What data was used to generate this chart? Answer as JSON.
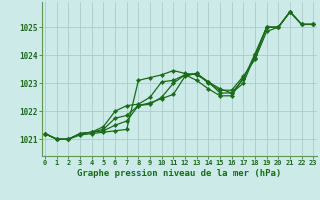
{
  "title": "Graphe pression niveau de la mer (hPa)",
  "background_color": "#cceae7",
  "grid_color": "#aacccc",
  "line_color": "#1a6b1a",
  "marker_color": "#1a6b1a",
  "x_labels": [
    "0",
    "1",
    "2",
    "3",
    "4",
    "5",
    "6",
    "7",
    "8",
    "9",
    "10",
    "11",
    "12",
    "13",
    "14",
    "15",
    "16",
    "17",
    "18",
    "19",
    "20",
    "21",
    "22",
    "23"
  ],
  "y_ticks": [
    1021,
    1022,
    1023,
    1024,
    1025
  ],
  "ylim": [
    1020.4,
    1025.9
  ],
  "xlim": [
    -0.3,
    23.3
  ],
  "series": [
    [
      1021.2,
      1021.0,
      1021.0,
      1021.15,
      1021.2,
      1021.25,
      1021.3,
      1021.35,
      1023.1,
      1023.2,
      1023.3,
      1023.45,
      1023.35,
      1023.3,
      1023.05,
      1022.8,
      1022.65,
      1023.15,
      1024.05,
      1025.0,
      1025.0,
      1025.55,
      1025.1,
      1025.1
    ],
    [
      1021.2,
      1021.0,
      1021.0,
      1021.2,
      1021.25,
      1021.3,
      1021.5,
      1021.65,
      1022.2,
      1022.3,
      1022.45,
      1022.6,
      1023.25,
      1023.35,
      1023.05,
      1022.65,
      1022.65,
      1023.0,
      1024.0,
      1025.0,
      1025.0,
      1025.55,
      1025.1,
      1025.1
    ],
    [
      1021.2,
      1021.0,
      1021.0,
      1021.2,
      1021.25,
      1021.35,
      1021.75,
      1021.85,
      1022.2,
      1022.25,
      1022.5,
      1023.0,
      1023.3,
      1023.1,
      1022.8,
      1022.55,
      1022.55,
      1023.2,
      1023.9,
      1025.0,
      1025.0,
      1025.55,
      1025.1,
      1025.1
    ],
    [
      1021.2,
      1021.0,
      1021.0,
      1021.2,
      1021.25,
      1021.45,
      1022.0,
      1022.2,
      1022.25,
      1022.5,
      1023.05,
      1023.1,
      1023.3,
      1023.35,
      1023.0,
      1022.75,
      1022.75,
      1023.25,
      1023.85,
      1024.85,
      1025.0,
      1025.55,
      1025.1,
      1025.1
    ]
  ]
}
